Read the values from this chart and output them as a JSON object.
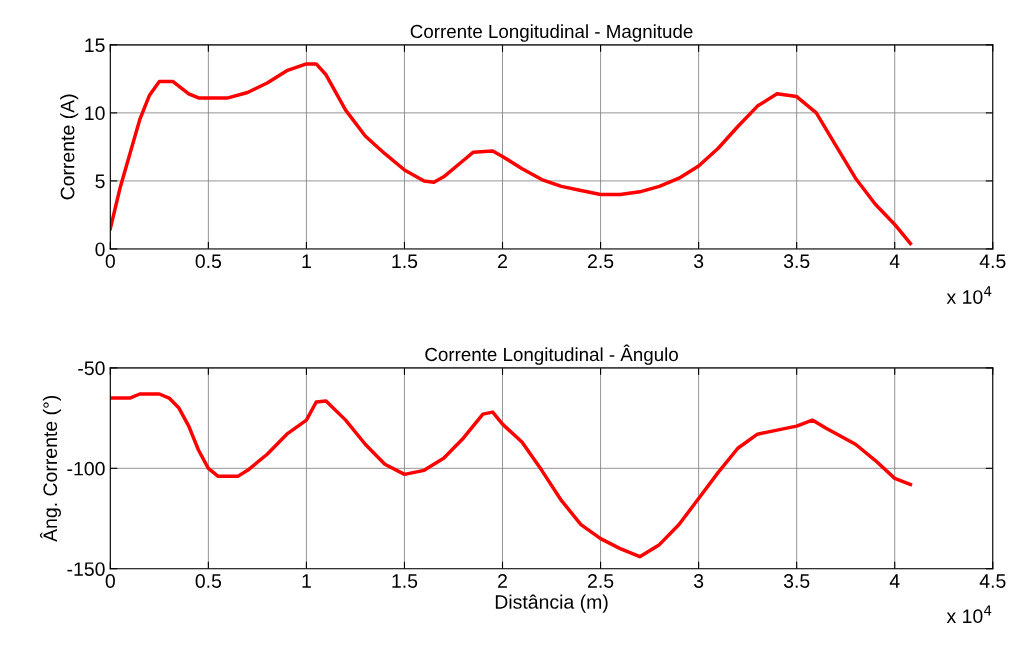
{
  "chart_data": [
    {
      "type": "line",
      "title": "Corrente Longitudinal - Magnitude",
      "ylabel": "Corrente (A)",
      "annotations": [
        "x 10$^{4}$"
      ],
      "grid": true,
      "legend": false,
      "line_style": "solid",
      "marker": "none",
      "xlim": [
        0,
        4.5
      ],
      "xticks": [
        0,
        0.5,
        1,
        1.5,
        2,
        2.5,
        3,
        3.5,
        4,
        4.5
      ],
      "ylim": [
        0,
        15
      ],
      "yticks": [
        0,
        5,
        10,
        15
      ],
      "series": [
        {
          "color": "#ff0000",
          "x": [
            0,
            0.05,
            0.1,
            0.15,
            0.2,
            0.25,
            0.32,
            0.4,
            0.45,
            0.6,
            0.7,
            0.8,
            0.9,
            1.0,
            1.05,
            1.1,
            1.2,
            1.3,
            1.4,
            1.5,
            1.6,
            1.65,
            1.7,
            1.8,
            1.85,
            1.95,
            2.0,
            2.1,
            2.2,
            2.3,
            2.4,
            2.5,
            2.6,
            2.7,
            2.8,
            2.9,
            3.0,
            3.1,
            3.2,
            3.3,
            3.4,
            3.5,
            3.6,
            3.7,
            3.8,
            3.9,
            4.0,
            4.08
          ],
          "values": [
            1.5,
            4.5,
            7,
            9.5,
            11.3,
            12.3,
            12.3,
            11.4,
            11.1,
            11.1,
            11.5,
            12.2,
            13.1,
            13.6,
            13.6,
            12.8,
            10.2,
            8.3,
            7,
            5.8,
            5,
            4.9,
            5.3,
            6.5,
            7.1,
            7.2,
            6.8,
            5.9,
            5.1,
            4.6,
            4.3,
            4,
            4,
            4.2,
            4.6,
            5.2,
            6.1,
            7.4,
            9,
            10.5,
            11.4,
            11.2,
            10,
            7.6,
            5.2,
            3.3,
            1.8,
            0.4
          ]
        }
      ]
    },
    {
      "type": "line",
      "title": "Corrente Longitudinal - Ângulo",
      "ylabel": "Âng. Corrente (°)",
      "xlabel": "Distância (m)",
      "annotations": [
        "x 10$^{4}$"
      ],
      "grid": true,
      "legend": false,
      "line_style": "solid",
      "marker": "none",
      "xlim": [
        0,
        4.5
      ],
      "xticks": [
        0,
        0.5,
        1,
        1.5,
        2,
        2.5,
        3,
        3.5,
        4,
        4.5
      ],
      "ylim": [
        -150,
        -50
      ],
      "yticks": [
        -150,
        -100,
        -50
      ],
      "series": [
        {
          "color": "#ff0000",
          "x": [
            0,
            0.1,
            0.15,
            0.25,
            0.3,
            0.35,
            0.4,
            0.45,
            0.5,
            0.55,
            0.65,
            0.7,
            0.8,
            0.9,
            1.0,
            1.05,
            1.1,
            1.2,
            1.3,
            1.4,
            1.5,
            1.6,
            1.7,
            1.8,
            1.9,
            1.95,
            2.0,
            2.1,
            2.2,
            2.3,
            2.4,
            2.5,
            2.6,
            2.7,
            2.8,
            2.9,
            3.0,
            3.1,
            3.2,
            3.3,
            3.4,
            3.5,
            3.58,
            3.65,
            3.8,
            3.9,
            4.0,
            4.08
          ],
          "values": [
            -65,
            -65,
            -63,
            -63,
            -65,
            -70,
            -79,
            -91,
            -100,
            -104,
            -104,
            -101,
            -93,
            -83,
            -76,
            -67,
            -66.5,
            -76,
            -88,
            -98,
            -103,
            -101,
            -95,
            -85,
            -73,
            -72,
            -78,
            -87,
            -101,
            -116,
            -128,
            -135,
            -140,
            -144,
            -138,
            -128,
            -115,
            -102,
            -90,
            -83,
            -81,
            -79,
            -76,
            -80,
            -88,
            -96,
            -105,
            -108
          ]
        }
      ]
    }
  ]
}
